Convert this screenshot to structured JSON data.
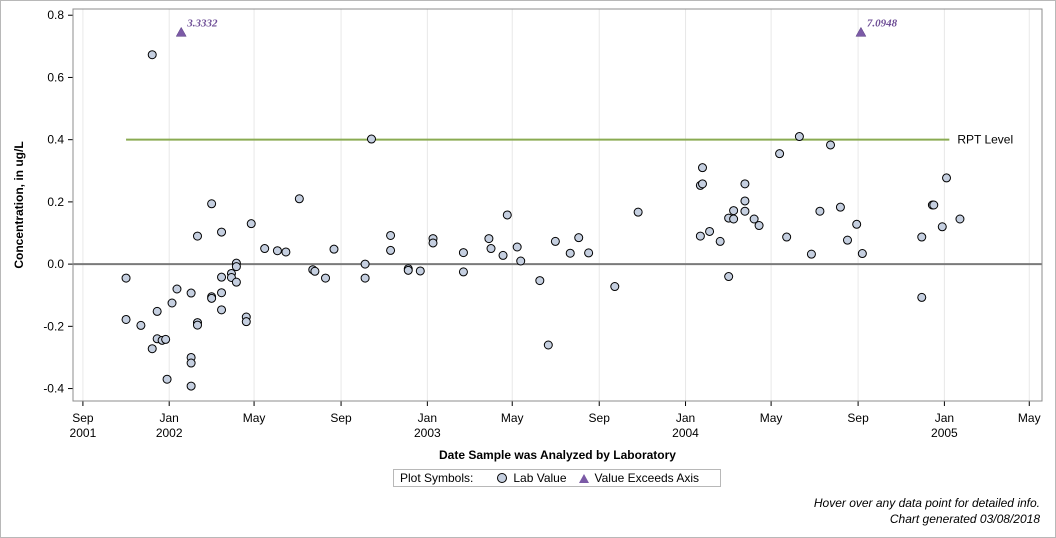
{
  "chart_data": {
    "type": "scatter",
    "xlabel": "Date Sample was Analyzed by Laboratory",
    "ylabel": "Concentration, in ug/L",
    "ylim": [
      -0.44,
      0.82
    ],
    "xlim": [
      "2001-08-18",
      "2005-05-19"
    ],
    "y_ticks": [
      "0.8",
      "0.6",
      "0.4",
      "0.2",
      "0.0",
      "-0.2",
      "-0.4"
    ],
    "x_ticks": [
      {
        "date": "2001-09-01",
        "label": "Sep",
        "sub": "2001"
      },
      {
        "date": "2002-01-01",
        "label": "Jan",
        "sub": "2002"
      },
      {
        "date": "2002-05-01",
        "label": "May",
        "sub": ""
      },
      {
        "date": "2002-09-01",
        "label": "Sep",
        "sub": ""
      },
      {
        "date": "2003-01-01",
        "label": "Jan",
        "sub": "2003"
      },
      {
        "date": "2003-05-01",
        "label": "May",
        "sub": ""
      },
      {
        "date": "2003-09-01",
        "label": "Sep",
        "sub": ""
      },
      {
        "date": "2004-01-01",
        "label": "Jan",
        "sub": "2004"
      },
      {
        "date": "2004-05-01",
        "label": "May",
        "sub": ""
      },
      {
        "date": "2004-09-01",
        "label": "Sep",
        "sub": ""
      },
      {
        "date": "2005-01-01",
        "label": "Jan",
        "sub": "2005"
      },
      {
        "date": "2005-05-01",
        "label": "May",
        "sub": ""
      }
    ],
    "grid": "vertical",
    "zero_line": 0.0,
    "reference_lines": [
      {
        "name": "RPT Level",
        "y": 0.4,
        "from": "2001-11-01",
        "to": "2005-01-08",
        "color": "#8aab52"
      }
    ],
    "series": [
      {
        "name": "Lab Value",
        "marker": "circle",
        "color": "#c5cfe0",
        "points": [
          {
            "x": "2001-11-01",
            "y": -0.045
          },
          {
            "x": "2001-11-01",
            "y": -0.178
          },
          {
            "x": "2001-11-22",
            "y": -0.197
          },
          {
            "x": "2001-12-08",
            "y": 0.673
          },
          {
            "x": "2001-12-08",
            "y": -0.272
          },
          {
            "x": "2001-12-15",
            "y": -0.152
          },
          {
            "x": "2001-12-15",
            "y": -0.24
          },
          {
            "x": "2001-12-22",
            "y": -0.245
          },
          {
            "x": "2001-12-27",
            "y": -0.242
          },
          {
            "x": "2001-12-29",
            "y": -0.37
          },
          {
            "x": "2002-01-05",
            "y": -0.125
          },
          {
            "x": "2002-01-12",
            "y": -0.08
          },
          {
            "x": "2002-02-01",
            "y": -0.093
          },
          {
            "x": "2002-02-01",
            "y": -0.3
          },
          {
            "x": "2002-02-01",
            "y": -0.318
          },
          {
            "x": "2002-02-01",
            "y": -0.392
          },
          {
            "x": "2002-02-10",
            "y": 0.09
          },
          {
            "x": "2002-02-10",
            "y": -0.188
          },
          {
            "x": "2002-02-10",
            "y": -0.196
          },
          {
            "x": "2002-03-02",
            "y": 0.194
          },
          {
            "x": "2002-03-02",
            "y": -0.105
          },
          {
            "x": "2002-03-02",
            "y": -0.11
          },
          {
            "x": "2002-03-16",
            "y": 0.103
          },
          {
            "x": "2002-03-16",
            "y": -0.042
          },
          {
            "x": "2002-03-16",
            "y": -0.092
          },
          {
            "x": "2002-03-16",
            "y": -0.147
          },
          {
            "x": "2002-03-30",
            "y": -0.03
          },
          {
            "x": "2002-03-30",
            "y": -0.043
          },
          {
            "x": "2002-04-06",
            "y": 0.003
          },
          {
            "x": "2002-04-06",
            "y": -0.008
          },
          {
            "x": "2002-04-06",
            "y": -0.058
          },
          {
            "x": "2002-04-20",
            "y": -0.17
          },
          {
            "x": "2002-04-20",
            "y": -0.185
          },
          {
            "x": "2002-04-27",
            "y": 0.13
          },
          {
            "x": "2002-05-16",
            "y": 0.05
          },
          {
            "x": "2002-06-03",
            "y": 0.043
          },
          {
            "x": "2002-06-15",
            "y": 0.039
          },
          {
            "x": "2002-07-04",
            "y": 0.21
          },
          {
            "x": "2002-07-23",
            "y": -0.018
          },
          {
            "x": "2002-07-26",
            "y": -0.023
          },
          {
            "x": "2002-08-10",
            "y": -0.045
          },
          {
            "x": "2002-08-22",
            "y": 0.048
          },
          {
            "x": "2002-10-05",
            "y": 0.0
          },
          {
            "x": "2002-10-05",
            "y": -0.045
          },
          {
            "x": "2002-10-14",
            "y": 0.402
          },
          {
            "x": "2002-11-10",
            "y": 0.092
          },
          {
            "x": "2002-11-10",
            "y": 0.044
          },
          {
            "x": "2002-12-05",
            "y": -0.015
          },
          {
            "x": "2002-12-05",
            "y": -0.02
          },
          {
            "x": "2002-12-22",
            "y": -0.022
          },
          {
            "x": "2003-01-09",
            "y": 0.082
          },
          {
            "x": "2003-01-09",
            "y": 0.068
          },
          {
            "x": "2003-02-21",
            "y": 0.037
          },
          {
            "x": "2003-02-21",
            "y": -0.025
          },
          {
            "x": "2003-03-29",
            "y": 0.082
          },
          {
            "x": "2003-04-01",
            "y": 0.05
          },
          {
            "x": "2003-04-18",
            "y": 0.028
          },
          {
            "x": "2003-04-24",
            "y": 0.158
          },
          {
            "x": "2003-05-08",
            "y": 0.055
          },
          {
            "x": "2003-05-13",
            "y": 0.01
          },
          {
            "x": "2003-06-09",
            "y": -0.053
          },
          {
            "x": "2003-06-21",
            "y": -0.26
          },
          {
            "x": "2003-07-01",
            "y": 0.073
          },
          {
            "x": "2003-07-22",
            "y": 0.035
          },
          {
            "x": "2003-08-03",
            "y": 0.085
          },
          {
            "x": "2003-08-17",
            "y": 0.036
          },
          {
            "x": "2003-09-23",
            "y": -0.072
          },
          {
            "x": "2003-10-26",
            "y": 0.167
          },
          {
            "x": "2004-01-22",
            "y": 0.253
          },
          {
            "x": "2004-01-22",
            "y": 0.09
          },
          {
            "x": "2004-01-25",
            "y": 0.31
          },
          {
            "x": "2004-01-25",
            "y": 0.258
          },
          {
            "x": "2004-02-04",
            "y": 0.105
          },
          {
            "x": "2004-02-19",
            "y": 0.073
          },
          {
            "x": "2004-03-02",
            "y": 0.148
          },
          {
            "x": "2004-03-02",
            "y": -0.04
          },
          {
            "x": "2004-03-09",
            "y": 0.172
          },
          {
            "x": "2004-03-09",
            "y": 0.145
          },
          {
            "x": "2004-03-25",
            "y": 0.258
          },
          {
            "x": "2004-03-25",
            "y": 0.203
          },
          {
            "x": "2004-03-25",
            "y": 0.17
          },
          {
            "x": "2004-04-07",
            "y": 0.145
          },
          {
            "x": "2004-04-14",
            "y": 0.124
          },
          {
            "x": "2004-05-13",
            "y": 0.355
          },
          {
            "x": "2004-05-23",
            "y": 0.087
          },
          {
            "x": "2004-06-10",
            "y": 0.41
          },
          {
            "x": "2004-06-27",
            "y": 0.032
          },
          {
            "x": "2004-07-09",
            "y": 0.17
          },
          {
            "x": "2004-07-24",
            "y": 0.383
          },
          {
            "x": "2004-08-07",
            "y": 0.183
          },
          {
            "x": "2004-08-17",
            "y": 0.077
          },
          {
            "x": "2004-08-30",
            "y": 0.128
          },
          {
            "x": "2004-09-07",
            "y": 0.034
          },
          {
            "x": "2004-11-30",
            "y": 0.087
          },
          {
            "x": "2004-11-30",
            "y": -0.107
          },
          {
            "x": "2004-12-15",
            "y": 0.19
          },
          {
            "x": "2004-12-17",
            "y": 0.19
          },
          {
            "x": "2004-12-29",
            "y": 0.12
          },
          {
            "x": "2005-01-04",
            "y": 0.277
          },
          {
            "x": "2005-01-23",
            "y": 0.145
          }
        ]
      },
      {
        "name": "Value Exceeds Axis",
        "marker": "triangle",
        "color": "#7b5aa6",
        "points": [
          {
            "x": "2002-01-18",
            "y_plot": 0.745,
            "label": "3.3332"
          },
          {
            "x": "2004-09-05",
            "y_plot": 0.745,
            "label": "7.0948"
          }
        ]
      }
    ]
  },
  "legend": {
    "title": "Plot Symbols:",
    "items": [
      "Lab Value",
      "Value Exceeds Axis"
    ]
  },
  "footnotes": {
    "line1": "Hover over any data point for detailed info.",
    "line2": "Chart generated 03/08/2018"
  }
}
